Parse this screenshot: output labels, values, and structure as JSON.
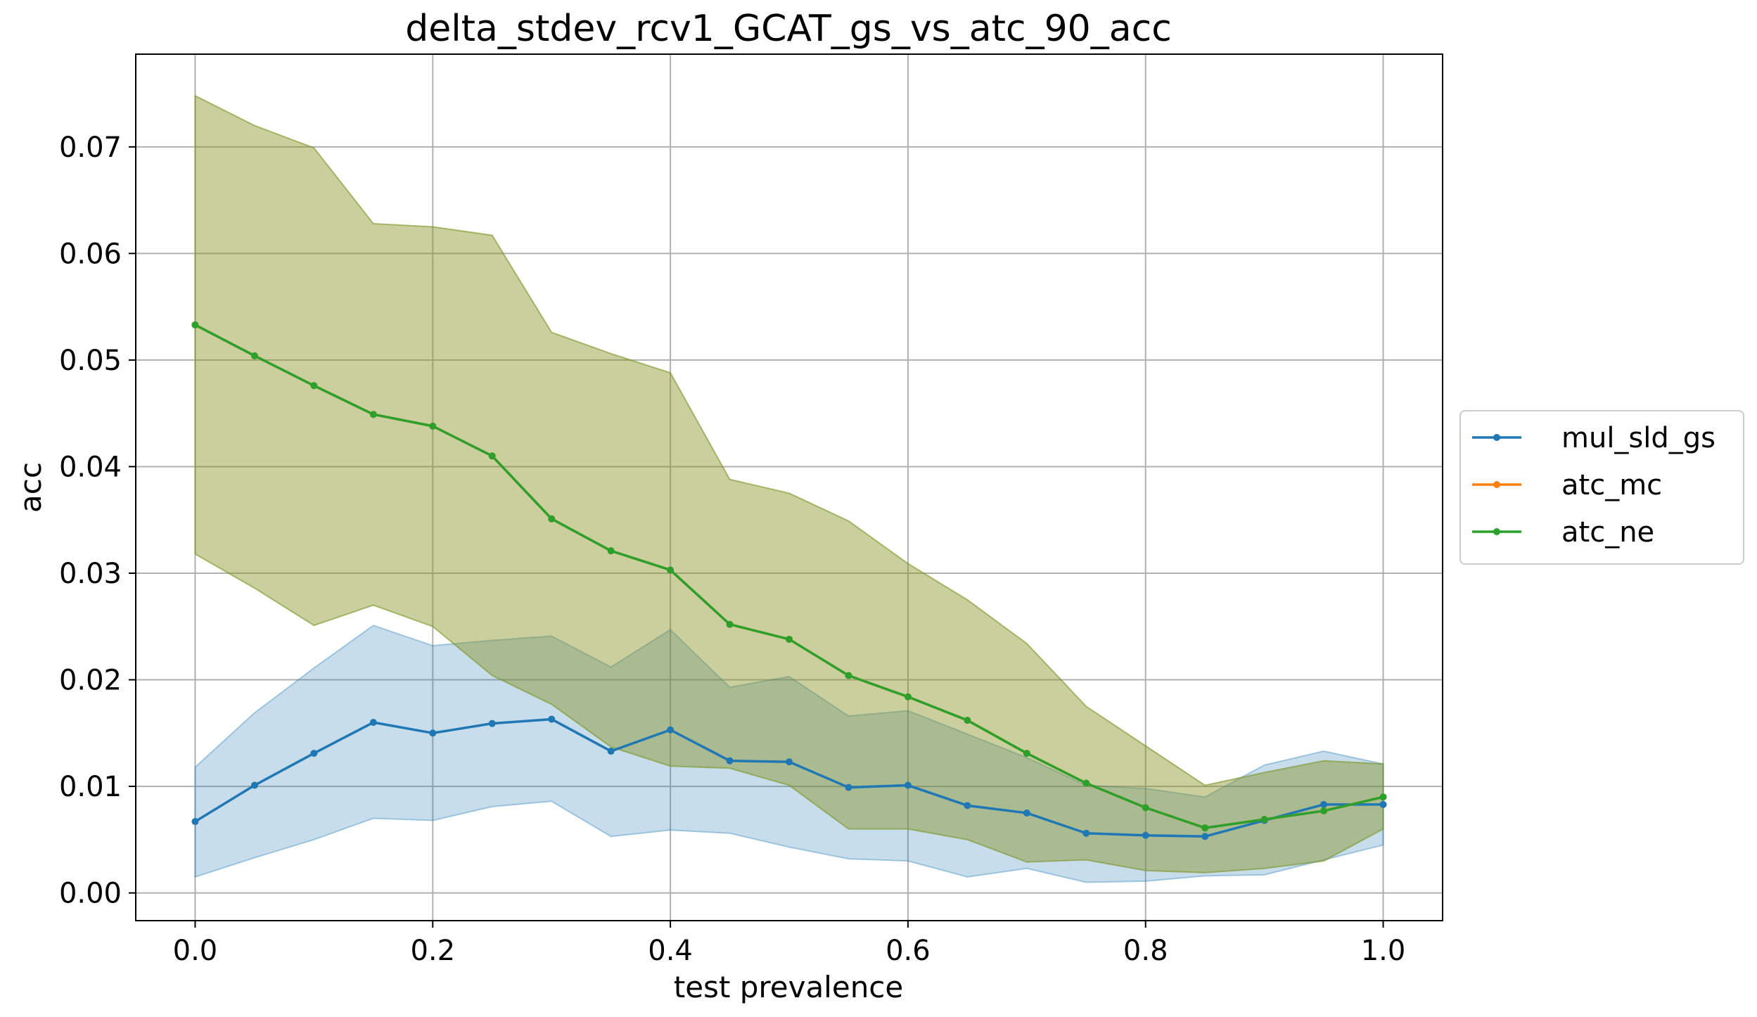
{
  "chart_data": {
    "type": "line",
    "title": "delta_stdev_rcv1_GCAT_gs_vs_atc_90_acc",
    "xlabel": "test prevalence",
    "ylabel": "acc",
    "xlim": [
      -0.05,
      1.05
    ],
    "ylim": [
      -0.0026,
      0.0787
    ],
    "xticks": [
      0.0,
      0.2,
      0.4,
      0.6,
      0.8,
      1.0
    ],
    "xtick_labels": [
      "0.0",
      "0.2",
      "0.4",
      "0.6",
      "0.8",
      "1.0"
    ],
    "yticks": [
      0.0,
      0.01,
      0.02,
      0.03,
      0.04,
      0.05,
      0.06,
      0.07
    ],
    "ytick_labels": [
      "0.00",
      "0.01",
      "0.02",
      "0.03",
      "0.04",
      "0.05",
      "0.06",
      "0.07"
    ],
    "grid": true,
    "legend_position": "outside-right",
    "x": [
      0.0,
      0.05,
      0.1,
      0.15,
      0.2,
      0.25,
      0.3,
      0.35,
      0.4,
      0.45,
      0.5,
      0.55,
      0.6,
      0.65,
      0.7,
      0.75,
      0.8,
      0.85,
      0.9,
      0.95,
      1.0
    ],
    "series": [
      {
        "name": "mul_sld_gs",
        "color": "#1f77b4",
        "band_color": "#1f77b4",
        "values": [
          0.0067,
          0.0101,
          0.0131,
          0.016,
          0.015,
          0.0159,
          0.0163,
          0.0133,
          0.0153,
          0.0124,
          0.0123,
          0.0099,
          0.0101,
          0.0082,
          0.0075,
          0.0056,
          0.0054,
          0.0053,
          0.0068,
          0.0083,
          0.0083
        ],
        "lower": [
          0.0015,
          0.0033,
          0.005,
          0.007,
          0.0068,
          0.0081,
          0.0086,
          0.0053,
          0.0059,
          0.0056,
          0.0043,
          0.0032,
          0.003,
          0.0015,
          0.0023,
          0.001,
          0.0011,
          0.0016,
          0.0017,
          0.0031,
          0.0045
        ],
        "upper": [
          0.0118,
          0.0169,
          0.0211,
          0.0251,
          0.0232,
          0.0237,
          0.0241,
          0.0212,
          0.0247,
          0.0193,
          0.0203,
          0.0166,
          0.0171,
          0.0149,
          0.0127,
          0.0101,
          0.0098,
          0.009,
          0.012,
          0.0133,
          0.0121
        ]
      },
      {
        "name": "atc_mc",
        "color": "#ff7f0e",
        "band_color": "#ff7f0e",
        "values": [
          0.0533,
          0.0504,
          0.0476,
          0.0449,
          0.0438,
          0.041,
          0.0351,
          0.0321,
          0.0303,
          0.0252,
          0.0238,
          0.0204,
          0.0184,
          0.0162,
          0.0131,
          0.0103,
          0.008,
          0.0061,
          0.0069,
          0.0077,
          0.009
        ],
        "lower": [
          0.0318,
          0.0286,
          0.0251,
          0.027,
          0.025,
          0.0204,
          0.0177,
          0.0137,
          0.0119,
          0.0117,
          0.0101,
          0.006,
          0.006,
          0.005,
          0.0029,
          0.0031,
          0.0021,
          0.0019,
          0.0023,
          0.003,
          0.006
        ],
        "upper": [
          0.0748,
          0.072,
          0.0699,
          0.0628,
          0.0625,
          0.0617,
          0.0526,
          0.0506,
          0.0488,
          0.0388,
          0.0375,
          0.0349,
          0.0309,
          0.0275,
          0.0234,
          0.0175,
          0.0138,
          0.0101,
          0.0113,
          0.0124,
          0.0121
        ]
      },
      {
        "name": "atc_ne",
        "color": "#2ca02c",
        "band_color": "#2ca02c",
        "values": [
          0.0533,
          0.0504,
          0.0476,
          0.0449,
          0.0438,
          0.041,
          0.0351,
          0.0321,
          0.0303,
          0.0252,
          0.0238,
          0.0204,
          0.0184,
          0.0162,
          0.0131,
          0.0103,
          0.008,
          0.0061,
          0.0069,
          0.0077,
          0.009
        ],
        "lower": [
          0.0318,
          0.0286,
          0.0251,
          0.027,
          0.025,
          0.0204,
          0.0177,
          0.0137,
          0.0119,
          0.0117,
          0.0101,
          0.006,
          0.006,
          0.005,
          0.0029,
          0.0031,
          0.0021,
          0.0019,
          0.0023,
          0.003,
          0.006
        ],
        "upper": [
          0.0748,
          0.072,
          0.0699,
          0.0628,
          0.0625,
          0.0617,
          0.0526,
          0.0506,
          0.0488,
          0.0388,
          0.0375,
          0.0349,
          0.0309,
          0.0275,
          0.0234,
          0.0175,
          0.0138,
          0.0101,
          0.0113,
          0.0124,
          0.0121
        ]
      }
    ]
  }
}
